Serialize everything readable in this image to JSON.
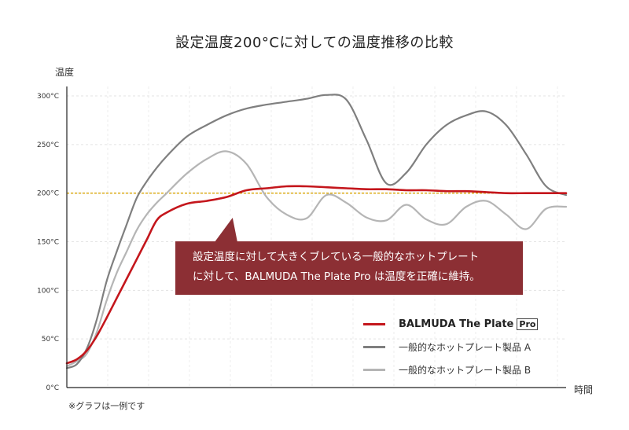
{
  "title": "設定温度200°Cに対しての温度推移の比較",
  "note": "※グラフは一例です",
  "callout": {
    "line1": "設定温度に対して大きくブレている一般的なホットプレート",
    "line2": "に対して、BALMUDA The Plate Pro は温度を正確に維持。"
  },
  "colors": {
    "plate_pro": "#c4161c",
    "product_a": "#7f7f7f",
    "product_b": "#b5b5b5",
    "setpoint": "#d9a400",
    "callout_bg": "#8c2f34"
  },
  "chart_data": {
    "type": "line",
    "title": "設定温度200°Cに対しての温度推移の比較",
    "xlabel": "時間",
    "ylabel": "温度",
    "ylim": [
      0,
      300
    ],
    "yticks": [
      "0°C",
      "50°C",
      "100°C",
      "150°C",
      "200°C",
      "250°C",
      "300°C"
    ],
    "ytick_values": [
      0,
      50,
      100,
      150,
      200,
      250,
      300
    ],
    "highlight_tick": "200°C",
    "reference_line": {
      "y": 200
    },
    "grid": true,
    "legend_position": "bottom-right",
    "x": [
      0,
      2,
      4,
      6,
      8,
      10,
      12,
      14,
      16,
      18,
      20,
      24,
      28,
      32,
      36,
      40,
      44,
      48,
      52,
      56,
      60,
      64,
      68,
      72,
      76,
      80,
      84,
      88,
      92,
      96,
      100
    ],
    "series": [
      {
        "name": "BALMUDA The Plate",
        "badge": "Pro",
        "values": [
          25,
          29,
          38,
          53,
          72,
          92,
          112,
          132,
          152,
          172,
          180,
          189,
          192,
          196,
          203,
          205,
          207,
          207,
          206,
          205,
          204,
          204,
          203,
          203,
          202,
          202,
          201,
          200,
          200,
          200,
          200
        ]
      },
      {
        "name": "一般的なホットプレート製品 A",
        "values": [
          20,
          24,
          40,
          70,
          110,
          140,
          168,
          195,
          212,
          226,
          238,
          258,
          270,
          280,
          287,
          291,
          294,
          297,
          301,
          296,
          255,
          210,
          221,
          250,
          270,
          280,
          284,
          270,
          240,
          207,
          198
        ]
      },
      {
        "name": "一般的なホットプレート製品 B",
        "values": [
          22,
          27,
          35,
          57,
          90,
          118,
          140,
          162,
          178,
          190,
          200,
          220,
          235,
          243,
          230,
          196,
          178,
          174,
          198,
          190,
          175,
          172,
          188,
          173,
          168,
          186,
          192,
          178,
          163,
          184,
          186
        ]
      }
    ]
  }
}
